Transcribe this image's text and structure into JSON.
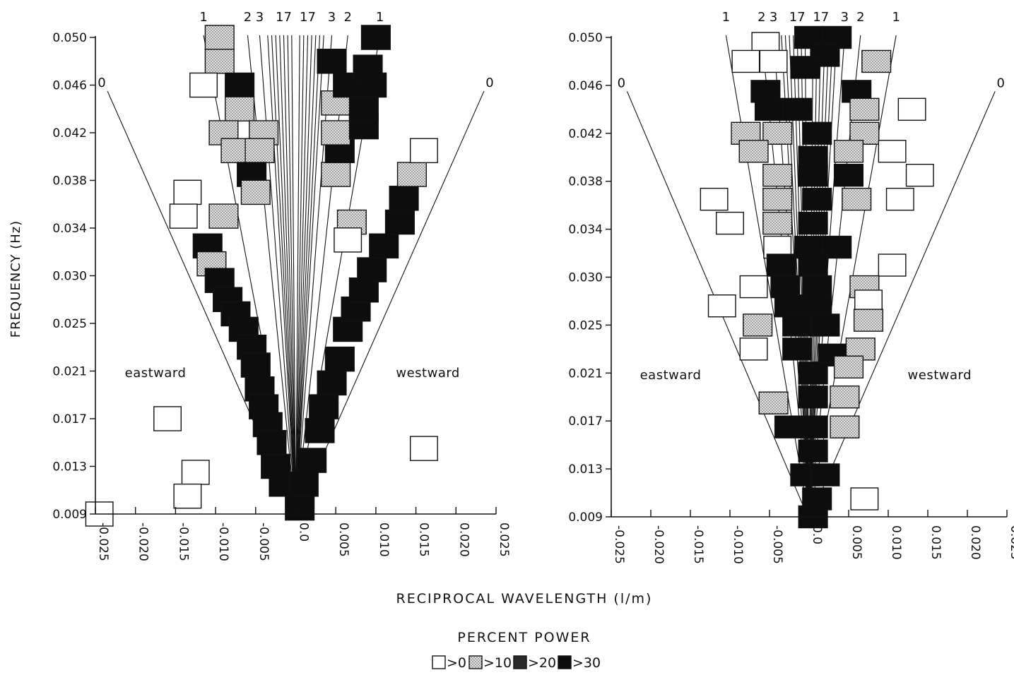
{
  "chart_data": [
    {
      "type": "heatmap",
      "panel": "left",
      "ylabel": "FREQUENCY (Hz)",
      "xlim": [
        -0.025,
        0.025
      ],
      "ylim": [
        0.009,
        0.05
      ],
      "y_ticks": [
        "0.050",
        "0.046",
        "0.042",
        "0.038",
        "0.034",
        "0.030",
        "0.025",
        "0.021",
        "0.017",
        "0.013",
        "0.009"
      ],
      "x_ticks": [
        "-0.025",
        "-0.020",
        "-0.015",
        "-0.010",
        "-0.005",
        "0.0",
        "0.005",
        "0.010",
        "0.015",
        "0.020",
        "0.025"
      ],
      "mode_labels_top": [
        "1",
        "2",
        "3",
        "17",
        "17",
        "3",
        "2",
        "1"
      ],
      "mode_labels_side": [
        "0",
        "0"
      ],
      "direction_labels": [
        "eastward",
        "westward"
      ],
      "cells": [
        [
          -0.0095,
          0.05,
          1
        ],
        [
          -0.0095,
          0.048,
          1
        ],
        [
          -0.0115,
          0.046,
          0
        ],
        [
          -0.007,
          0.046,
          3
        ],
        [
          -0.007,
          0.044,
          1
        ],
        [
          -0.009,
          0.042,
          1
        ],
        [
          -0.004,
          0.042,
          1
        ],
        [
          -0.0075,
          0.0405,
          1
        ],
        [
          -0.0045,
          0.0405,
          1
        ],
        [
          -0.0055,
          0.0385,
          3
        ],
        [
          -0.005,
          0.037,
          1
        ],
        [
          -0.0135,
          0.037,
          0
        ],
        [
          -0.014,
          0.035,
          0
        ],
        [
          -0.009,
          0.035,
          1
        ],
        [
          -0.011,
          0.0325,
          3
        ],
        [
          -0.0105,
          0.031,
          1
        ],
        [
          -0.0095,
          0.0295,
          3
        ],
        [
          -0.0085,
          0.0275,
          3
        ],
        [
          -0.0075,
          0.026,
          3
        ],
        [
          -0.0065,
          0.0245,
          3
        ],
        [
          -0.0055,
          0.023,
          3
        ],
        [
          -0.005,
          0.0215,
          3
        ],
        [
          -0.0045,
          0.0195,
          3
        ],
        [
          -0.004,
          0.018,
          3
        ],
        [
          -0.0035,
          0.0165,
          3
        ],
        [
          -0.003,
          0.015,
          3
        ],
        [
          -0.0025,
          0.013,
          3
        ],
        [
          -0.0015,
          0.0115,
          3
        ],
        [
          0.001,
          0.0115,
          3
        ],
        [
          0.0005,
          0.0095,
          3
        ],
        [
          0.002,
          0.0135,
          3
        ],
        [
          0.003,
          0.016,
          3
        ],
        [
          0.0035,
          0.018,
          3
        ],
        [
          0.0045,
          0.02,
          3
        ],
        [
          0.0055,
          0.022,
          3
        ],
        [
          0.0065,
          0.0245,
          3
        ],
        [
          0.0075,
          0.0265,
          3
        ],
        [
          0.0085,
          0.0285,
          3
        ],
        [
          0.0095,
          0.0305,
          3
        ],
        [
          0.011,
          0.0325,
          3
        ],
        [
          0.013,
          0.0345,
          3
        ],
        [
          0.0135,
          0.0365,
          3
        ],
        [
          0.0145,
          0.0385,
          1
        ],
        [
          0.016,
          0.0405,
          0
        ],
        [
          0.007,
          0.0345,
          1
        ],
        [
          0.0065,
          0.033,
          0
        ],
        [
          0.005,
          0.0385,
          1
        ],
        [
          0.0055,
          0.0405,
          3
        ],
        [
          0.005,
          0.042,
          1
        ],
        [
          0.0085,
          0.0425,
          3
        ],
        [
          0.005,
          0.0445,
          1
        ],
        [
          0.0085,
          0.044,
          3
        ],
        [
          0.0065,
          0.046,
          3
        ],
        [
          0.0095,
          0.046,
          3
        ],
        [
          0.009,
          0.0475,
          3
        ],
        [
          0.0045,
          0.048,
          3
        ],
        [
          0.01,
          0.05,
          3
        ],
        [
          -0.016,
          0.017,
          0
        ],
        [
          -0.0125,
          0.0125,
          0
        ],
        [
          -0.0135,
          0.0105,
          0
        ],
        [
          -0.0245,
          0.009,
          0
        ],
        [
          0.016,
          0.0145,
          0
        ]
      ]
    },
    {
      "type": "heatmap",
      "panel": "right",
      "xlim": [
        -0.025,
        0.025
      ],
      "ylim": [
        0.009,
        0.05
      ],
      "y_ticks": [
        "0.050",
        "0.046",
        "0.042",
        "0.038",
        "0.034",
        "0.030",
        "0.025",
        "0.021",
        "0.017",
        "0.013",
        "0.009"
      ],
      "x_ticks": [
        "-0.025",
        "-0.020",
        "-0.015",
        "-0.010",
        "-0.005",
        "0.0",
        "0.005",
        "0.010",
        "0.015",
        "0.020",
        "0.025"
      ],
      "mode_labels_top": [
        "1",
        "2",
        "3",
        "17",
        "17",
        "3",
        "2",
        "1"
      ],
      "mode_labels_side": [
        "0",
        "0"
      ],
      "direction_labels": [
        "eastward",
        "westward"
      ],
      "cells": [
        [
          -0.0055,
          0.0495,
          0
        ],
        [
          -0.008,
          0.048,
          0
        ],
        [
          -0.0045,
          0.048,
          0
        ],
        [
          0.0,
          0.05,
          3
        ],
        [
          0.0035,
          0.05,
          3
        ],
        [
          0.002,
          0.0485,
          3
        ],
        [
          -0.0005,
          0.0475,
          3
        ],
        [
          0.0085,
          0.048,
          1
        ],
        [
          -0.0055,
          0.0455,
          3
        ],
        [
          0.006,
          0.0455,
          3
        ],
        [
          -0.005,
          0.044,
          3
        ],
        [
          -0.0015,
          0.044,
          3
        ],
        [
          0.007,
          0.044,
          1
        ],
        [
          0.013,
          0.044,
          0
        ],
        [
          -0.008,
          0.042,
          1
        ],
        [
          -0.004,
          0.042,
          1
        ],
        [
          0.001,
          0.042,
          3
        ],
        [
          0.007,
          0.042,
          1
        ],
        [
          -0.007,
          0.0405,
          1
        ],
        [
          0.0005,
          0.04,
          3
        ],
        [
          0.005,
          0.0405,
          1
        ],
        [
          0.0105,
          0.0405,
          0
        ],
        [
          -0.004,
          0.0385,
          1
        ],
        [
          0.0005,
          0.0385,
          3
        ],
        [
          0.005,
          0.0385,
          3
        ],
        [
          0.014,
          0.0385,
          0
        ],
        [
          -0.004,
          0.0365,
          1
        ],
        [
          0.001,
          0.0365,
          3
        ],
        [
          0.006,
          0.0365,
          1
        ],
        [
          0.0115,
          0.0365,
          0
        ],
        [
          -0.012,
          0.0365,
          0
        ],
        [
          -0.01,
          0.0345,
          0
        ],
        [
          -0.004,
          0.0345,
          1
        ],
        [
          0.0005,
          0.0345,
          3
        ],
        [
          -0.004,
          0.0325,
          0
        ],
        [
          0.0,
          0.0325,
          3
        ],
        [
          0.0035,
          0.0325,
          3
        ],
        [
          -0.0035,
          0.031,
          3
        ],
        [
          0.0005,
          0.031,
          3
        ],
        [
          0.0105,
          0.031,
          0
        ],
        [
          -0.007,
          0.029,
          0
        ],
        [
          0.007,
          0.029,
          1
        ],
        [
          -0.003,
          0.029,
          3
        ],
        [
          0.001,
          0.029,
          3
        ],
        [
          -0.011,
          0.027,
          0
        ],
        [
          -0.0025,
          0.027,
          3
        ],
        [
          0.001,
          0.027,
          3
        ],
        [
          0.0075,
          0.0275,
          0
        ],
        [
          -0.0065,
          0.025,
          1
        ],
        [
          -0.0015,
          0.025,
          3
        ],
        [
          0.002,
          0.025,
          3
        ],
        [
          0.0075,
          0.0255,
          1
        ],
        [
          -0.007,
          0.023,
          0
        ],
        [
          -0.0015,
          0.023,
          3
        ],
        [
          0.003,
          0.0225,
          3
        ],
        [
          0.0065,
          0.023,
          1
        ],
        [
          0.0005,
          0.021,
          3
        ],
        [
          0.005,
          0.0215,
          1
        ],
        [
          -0.0045,
          0.0185,
          1
        ],
        [
          0.0005,
          0.019,
          3
        ],
        [
          0.0045,
          0.019,
          1
        ],
        [
          -0.0025,
          0.0165,
          3
        ],
        [
          0.0005,
          0.0165,
          3
        ],
        [
          0.0045,
          0.0165,
          1
        ],
        [
          0.0005,
          0.0145,
          3
        ],
        [
          -0.0005,
          0.0125,
          3
        ],
        [
          0.002,
          0.0125,
          3
        ],
        [
          0.001,
          0.0105,
          3
        ],
        [
          0.007,
          0.0105,
          0
        ],
        [
          0.0005,
          0.009,
          3
        ]
      ]
    }
  ],
  "x_axis_title": "RECIPROCAL  WAVELENGTH  (l/m)",
  "legend": {
    "title": "PERCENT POWER",
    "items": [
      {
        "label": ">0",
        "class": "c0"
      },
      {
        "label": ">10",
        "class": "c10"
      },
      {
        "label": ">20",
        "class": "c20"
      },
      {
        "label": ">30",
        "class": "c30"
      }
    ]
  }
}
